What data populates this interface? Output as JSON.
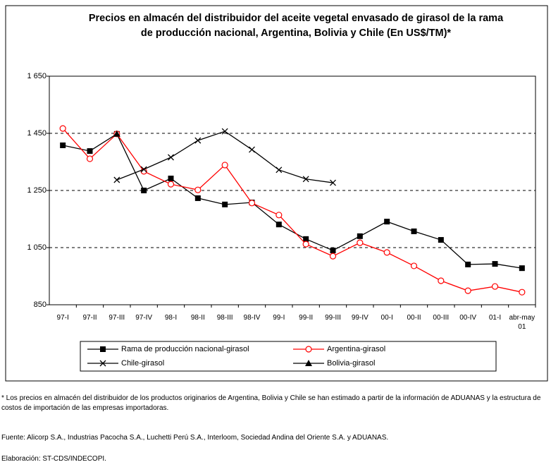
{
  "chart_data": {
    "type": "line",
    "title": "Precios en almacén del distribuidor del aceite vegetal envasado de girasol de la rama de producción nacional, Argentina, Bolivia y Chile (En US$/TM)*",
    "categories": [
      "97-I",
      "97-II",
      "97-III",
      "97-IV",
      "98-I",
      "98-II",
      "98-III",
      "98-IV",
      "99-I",
      "99-II",
      "99-III",
      "99-IV",
      "00-I",
      "00-II",
      "00-III",
      "00-IV",
      "01-I",
      "abr-may 01"
    ],
    "series": [
      {
        "name": "Rama de producción nacional-girasol",
        "color": "#000000",
        "marker": "square",
        "values": [
          1408,
          1388,
          1448,
          1250,
          1292,
          1223,
          1201,
          1208,
          1131,
          1080,
          1040,
          1090,
          1141,
          1107,
          1077,
          991,
          993,
          978
        ]
      },
      {
        "name": "Argentina-girasol",
        "color": "#ff0000",
        "marker": "circle",
        "values": [
          1467,
          1361,
          1448,
          1317,
          1272,
          1252,
          1339,
          1206,
          1164,
          1062,
          1020,
          1067,
          1033,
          986,
          934,
          899,
          914,
          894
        ]
      },
      {
        "name": "Chile-girasol",
        "color": "#000000",
        "marker": "x",
        "values": [
          null,
          null,
          1287,
          1324,
          1366,
          1425,
          1457,
          1393,
          1322,
          1290,
          1277,
          null,
          null,
          null,
          null,
          null,
          null,
          null
        ]
      },
      {
        "name": "Bolivia-girasol",
        "color": "#000000",
        "marker": "triangle",
        "values": [
          null,
          null,
          1448,
          null,
          null,
          null,
          null,
          null,
          null,
          null,
          null,
          null,
          null,
          null,
          null,
          null,
          null,
          null
        ]
      }
    ],
    "ylim": [
      850,
      1650
    ],
    "yticks": [
      {
        "value": 850,
        "label": "850"
      },
      {
        "value": 1050,
        "label": "1 050"
      },
      {
        "value": 1250,
        "label": "1 250"
      },
      {
        "value": 1450,
        "label": "1 450"
      },
      {
        "value": 1650,
        "label": "1 650"
      }
    ],
    "grid": true,
    "legend": "bottom",
    "notes": [
      "* Los precios en almacén del distribuidor de los productos originarios de Argentina, Bolivia y Chile se han estimado a partir de la información de ADUANAS y la estructura de costos de importación de las empresas importadoras.",
      "Fuente: Alicorp S.A., Industrias Pacocha S.A., Luchetti Perú S.A., Interloom, Sociedad Andina del Oriente S.A. y ADUANAS.",
      "Elaboración: ST-CDS/INDECOPI."
    ]
  }
}
